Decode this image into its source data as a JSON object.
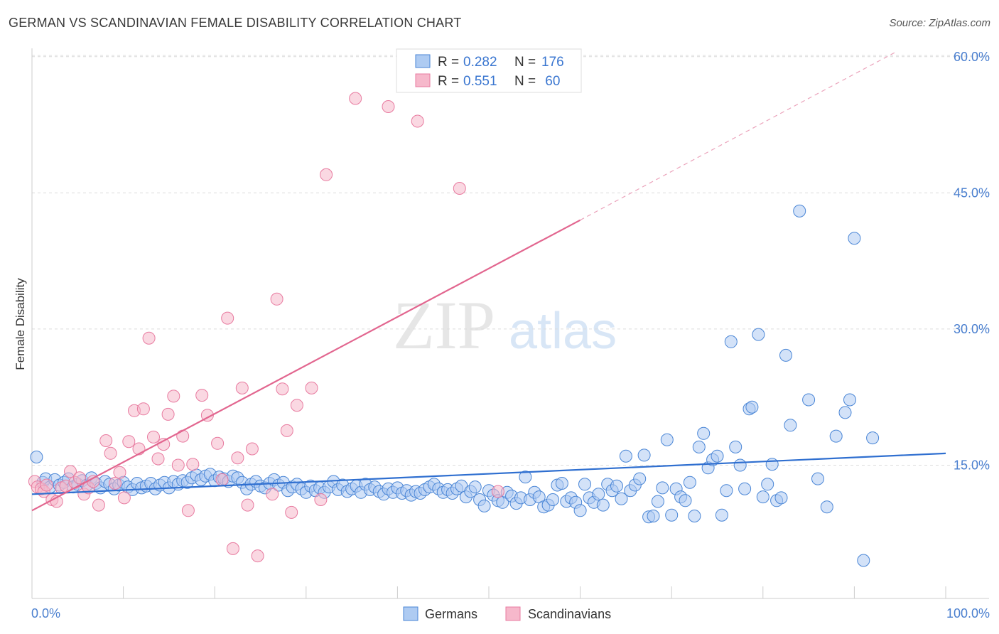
{
  "header": {
    "title": "GERMAN VS SCANDINAVIAN FEMALE DISABILITY CORRELATION CHART",
    "source": "Source: ZipAtlas.com"
  },
  "watermark": {
    "zip": "ZIP",
    "atlas": "atlas"
  },
  "legend": {
    "rows": [
      {
        "r_label": "R = ",
        "r_value": "0.282",
        "n_label": "N = ",
        "n_value": "176",
        "color": "#aecbf2"
      },
      {
        "r_label": "R = ",
        "r_value": "0.551",
        "n_label": "N = ",
        "n_value": " 60",
        "color": "#f6b8cb"
      }
    ]
  },
  "bottom_legend": [
    {
      "label": "Germans",
      "color": "#aecbf2"
    },
    {
      "label": "Scandinavians",
      "color": "#f6b8cb"
    }
  ],
  "chart_data": {
    "type": "scatter",
    "title": "GERMAN VS SCANDINAVIAN FEMALE DISABILITY CORRELATION CHART",
    "xlabel": "",
    "ylabel": "Female Disability",
    "xlim": [
      0,
      100
    ],
    "ylim": [
      0,
      65
    ],
    "x_tick_labels": [
      "0.0%",
      "100.0%"
    ],
    "y_ticks": [
      15,
      30,
      45,
      60
    ],
    "y_tick_labels": [
      "15.0%",
      "30.0%",
      "45.0%",
      "60.0%"
    ],
    "grid": true,
    "legend_placement": "top-center",
    "series": [
      {
        "name": "Germans",
        "color": "#4a86d6",
        "fill": "#aecbf2",
        "trend": {
          "x0": 0,
          "y0": 11.8,
          "x1": 100,
          "y1": 16.3,
          "r": 0.282,
          "n": 176
        },
        "points": [
          [
            0.5,
            15.9
          ],
          [
            1.2,
            13.1
          ],
          [
            1.5,
            13.5
          ],
          [
            2.0,
            12.6
          ],
          [
            2.5,
            13.4
          ],
          [
            3.0,
            12.8
          ],
          [
            3.5,
            13.1
          ],
          [
            4.0,
            13.5
          ],
          [
            4.5,
            12.6
          ],
          [
            5.0,
            12.9
          ],
          [
            5.5,
            13.3
          ],
          [
            6.0,
            12.8
          ],
          [
            6.5,
            13.6
          ],
          [
            7.0,
            13.0
          ],
          [
            7.5,
            12.5
          ],
          [
            8.0,
            13.2
          ],
          [
            8.5,
            12.9
          ],
          [
            9.0,
            12.4
          ],
          [
            9.5,
            12.8
          ],
          [
            10.0,
            13.1
          ],
          [
            10.5,
            12.6
          ],
          [
            11.0,
            12.3
          ],
          [
            11.5,
            13.0
          ],
          [
            12.0,
            12.5
          ],
          [
            12.5,
            12.7
          ],
          [
            13.0,
            13.0
          ],
          [
            13.5,
            12.4
          ],
          [
            14.0,
            12.8
          ],
          [
            14.5,
            13.1
          ],
          [
            15.0,
            12.5
          ],
          [
            15.5,
            13.2
          ],
          [
            16.0,
            12.9
          ],
          [
            16.5,
            13.3
          ],
          [
            17.0,
            13.1
          ],
          [
            17.5,
            13.6
          ],
          [
            18.0,
            13.9
          ],
          [
            18.5,
            13.4
          ],
          [
            19.0,
            13.8
          ],
          [
            19.5,
            14.0
          ],
          [
            20.0,
            13.3
          ],
          [
            20.5,
            13.7
          ],
          [
            21.0,
            13.5
          ],
          [
            21.5,
            13.2
          ],
          [
            22.0,
            13.8
          ],
          [
            22.5,
            13.6
          ],
          [
            23.0,
            13.1
          ],
          [
            23.5,
            12.4
          ],
          [
            24.0,
            12.9
          ],
          [
            24.5,
            13.2
          ],
          [
            25.0,
            12.7
          ],
          [
            25.5,
            12.5
          ],
          [
            26.0,
            13.0
          ],
          [
            26.5,
            13.4
          ],
          [
            27.0,
            12.8
          ],
          [
            27.5,
            13.1
          ],
          [
            28.0,
            12.2
          ],
          [
            28.5,
            12.6
          ],
          [
            29.0,
            12.9
          ],
          [
            29.5,
            12.4
          ],
          [
            30.0,
            12.0
          ],
          [
            30.5,
            12.7
          ],
          [
            31.0,
            12.2
          ],
          [
            31.5,
            12.5
          ],
          [
            32.0,
            12.0
          ],
          [
            32.5,
            12.6
          ],
          [
            33.0,
            13.2
          ],
          [
            33.5,
            12.3
          ],
          [
            34.0,
            12.8
          ],
          [
            34.5,
            12.1
          ],
          [
            35.0,
            12.4
          ],
          [
            35.5,
            12.7
          ],
          [
            36.0,
            12.0
          ],
          [
            36.5,
            12.9
          ],
          [
            37.0,
            12.3
          ],
          [
            37.5,
            12.6
          ],
          [
            38.0,
            12.1
          ],
          [
            38.5,
            11.8
          ],
          [
            39.0,
            12.4
          ],
          [
            39.5,
            12.0
          ],
          [
            40.0,
            12.5
          ],
          [
            40.5,
            11.9
          ],
          [
            41.0,
            12.2
          ],
          [
            41.5,
            11.7
          ],
          [
            42.0,
            12.1
          ],
          [
            42.5,
            11.9
          ],
          [
            43.0,
            12.3
          ],
          [
            43.5,
            12.6
          ],
          [
            44.0,
            12.9
          ],
          [
            44.5,
            12.4
          ],
          [
            45.0,
            12.0
          ],
          [
            45.5,
            12.3
          ],
          [
            46.0,
            11.9
          ],
          [
            46.5,
            12.4
          ],
          [
            47.0,
            12.7
          ],
          [
            47.5,
            11.5
          ],
          [
            48.0,
            12.1
          ],
          [
            48.5,
            12.6
          ],
          [
            49.0,
            11.2
          ],
          [
            49.5,
            10.5
          ],
          [
            50.0,
            12.2
          ],
          [
            50.5,
            11.7
          ],
          [
            51.0,
            11.1
          ],
          [
            51.5,
            10.9
          ],
          [
            52.0,
            12.0
          ],
          [
            52.5,
            11.6
          ],
          [
            53.0,
            10.8
          ],
          [
            53.5,
            11.4
          ],
          [
            54.0,
            13.7
          ],
          [
            54.5,
            11.2
          ],
          [
            55.0,
            12.0
          ],
          [
            55.5,
            11.5
          ],
          [
            56.0,
            10.4
          ],
          [
            56.5,
            10.6
          ],
          [
            57.0,
            11.2
          ],
          [
            57.5,
            12.8
          ],
          [
            58.0,
            13.0
          ],
          [
            58.5,
            11.0
          ],
          [
            59.0,
            11.4
          ],
          [
            59.5,
            10.9
          ],
          [
            60.0,
            10.0
          ],
          [
            60.5,
            12.9
          ],
          [
            61.0,
            11.4
          ],
          [
            61.5,
            10.9
          ],
          [
            62.0,
            11.8
          ],
          [
            62.5,
            10.6
          ],
          [
            63.0,
            12.9
          ],
          [
            63.5,
            12.2
          ],
          [
            64.0,
            12.7
          ],
          [
            64.5,
            11.3
          ],
          [
            65.0,
            16.0
          ],
          [
            65.5,
            12.2
          ],
          [
            66.0,
            12.8
          ],
          [
            66.5,
            13.5
          ],
          [
            67.0,
            16.1
          ],
          [
            67.5,
            9.3
          ],
          [
            68.0,
            9.4
          ],
          [
            68.5,
            11.0
          ],
          [
            69.0,
            12.5
          ],
          [
            69.5,
            17.8
          ],
          [
            70.0,
            9.5
          ],
          [
            70.5,
            12.4
          ],
          [
            71.0,
            11.5
          ],
          [
            71.5,
            11.1
          ],
          [
            72.0,
            13.1
          ],
          [
            72.5,
            9.4
          ],
          [
            73.0,
            17.0
          ],
          [
            73.5,
            18.5
          ],
          [
            74.0,
            14.7
          ],
          [
            74.5,
            15.6
          ],
          [
            75.0,
            16.0
          ],
          [
            75.5,
            9.5
          ],
          [
            76.0,
            12.2
          ],
          [
            76.5,
            28.6
          ],
          [
            77.0,
            17.0
          ],
          [
            77.5,
            15.0
          ],
          [
            78.0,
            12.4
          ],
          [
            78.5,
            21.2
          ],
          [
            78.8,
            21.4
          ],
          [
            79.5,
            29.4
          ],
          [
            80.0,
            11.5
          ],
          [
            80.5,
            12.9
          ],
          [
            81.0,
            15.1
          ],
          [
            81.5,
            11.1
          ],
          [
            82.0,
            11.4
          ],
          [
            82.5,
            27.1
          ],
          [
            83.0,
            19.4
          ],
          [
            84.0,
            43.0
          ],
          [
            85.0,
            22.2
          ],
          [
            86.0,
            13.5
          ],
          [
            87.0,
            10.4
          ],
          [
            88.0,
            18.2
          ],
          [
            89.0,
            20.8
          ],
          [
            89.5,
            22.2
          ],
          [
            90.0,
            40.0
          ],
          [
            91.0,
            4.5
          ],
          [
            92.0,
            18.0
          ]
        ]
      },
      {
        "name": "Scandinavians",
        "color": "#e87ba0",
        "fill": "#f6b8cb",
        "trend": {
          "x0": 0,
          "y0": 10.0,
          "x1": 60,
          "y1": 42.0,
          "dash_to_x": 94.5,
          "dash_to_y": 60.5,
          "r": 0.551,
          "n": 60
        },
        "points": [
          [
            0.3,
            13.2
          ],
          [
            0.6,
            12.6
          ],
          [
            1.0,
            12.4
          ],
          [
            1.3,
            12.1
          ],
          [
            1.6,
            12.8
          ],
          [
            2.2,
            11.2
          ],
          [
            2.7,
            11.0
          ],
          [
            3.2,
            12.5
          ],
          [
            3.7,
            12.7
          ],
          [
            4.2,
            14.3
          ],
          [
            4.7,
            13.1
          ],
          [
            5.2,
            13.6
          ],
          [
            5.7,
            11.8
          ],
          [
            6.2,
            12.5
          ],
          [
            6.7,
            13.2
          ],
          [
            7.3,
            10.6
          ],
          [
            8.1,
            17.7
          ],
          [
            8.6,
            16.3
          ],
          [
            9.1,
            13.0
          ],
          [
            9.6,
            14.2
          ],
          [
            10.1,
            11.4
          ],
          [
            10.6,
            17.6
          ],
          [
            11.2,
            21.0
          ],
          [
            11.7,
            16.8
          ],
          [
            12.2,
            21.2
          ],
          [
            12.8,
            29.0
          ],
          [
            13.3,
            18.1
          ],
          [
            13.8,
            15.7
          ],
          [
            14.4,
            17.3
          ],
          [
            14.9,
            20.6
          ],
          [
            15.5,
            22.6
          ],
          [
            16.0,
            15.0
          ],
          [
            16.5,
            18.2
          ],
          [
            17.1,
            10.0
          ],
          [
            17.6,
            15.1
          ],
          [
            18.6,
            22.7
          ],
          [
            19.2,
            20.5
          ],
          [
            20.3,
            17.4
          ],
          [
            20.8,
            13.4
          ],
          [
            21.4,
            31.2
          ],
          [
            22.0,
            5.8
          ],
          [
            22.5,
            15.8
          ],
          [
            23.0,
            23.5
          ],
          [
            23.6,
            10.6
          ],
          [
            24.1,
            16.8
          ],
          [
            24.7,
            5.0
          ],
          [
            26.3,
            11.8
          ],
          [
            26.8,
            33.3
          ],
          [
            27.4,
            23.4
          ],
          [
            27.9,
            18.8
          ],
          [
            28.4,
            9.8
          ],
          [
            29.0,
            21.6
          ],
          [
            30.6,
            23.5
          ],
          [
            31.6,
            11.2
          ],
          [
            32.2,
            47.0
          ],
          [
            35.4,
            55.4
          ],
          [
            39.0,
            54.5
          ],
          [
            42.2,
            52.9
          ],
          [
            46.8,
            45.5
          ],
          [
            51.0,
            12.1
          ]
        ]
      }
    ]
  }
}
